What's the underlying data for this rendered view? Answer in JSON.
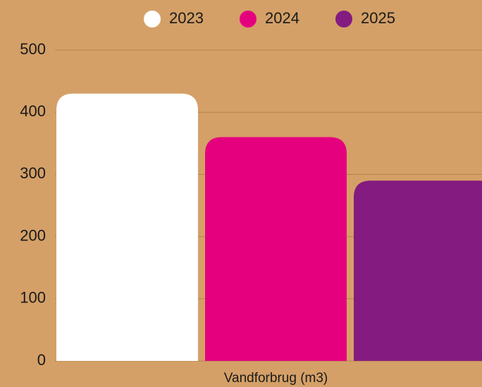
{
  "chart_data": {
    "type": "bar",
    "categories": [
      "Vandforbrug (m3)"
    ],
    "series": [
      {
        "name": "2023",
        "color": "#ffffff",
        "values": [
          430
        ]
      },
      {
        "name": "2024",
        "color": "#e5007e",
        "values": [
          360
        ]
      },
      {
        "name": "2025",
        "color": "#841b80",
        "values": [
          290
        ]
      }
    ],
    "ylim": [
      0,
      500
    ],
    "yticks": [
      0,
      100,
      200,
      300,
      400,
      500
    ],
    "grid": true,
    "legend": "top"
  }
}
